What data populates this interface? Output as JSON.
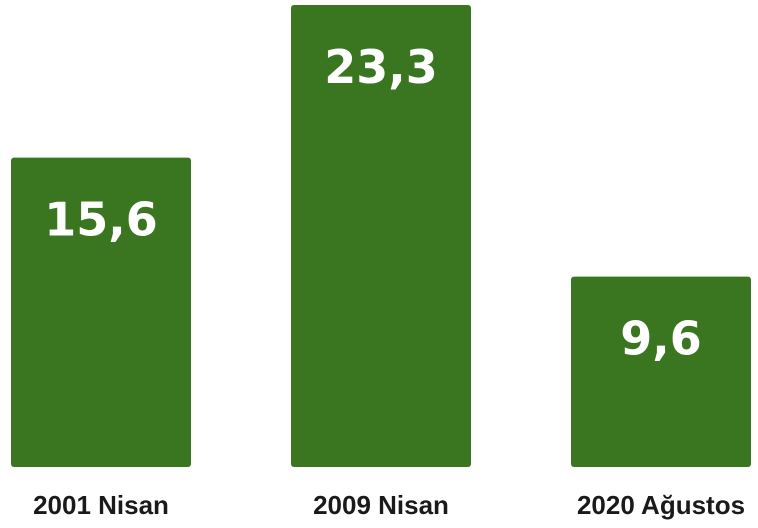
{
  "chart_data": {
    "type": "bar",
    "categories": [
      "2001 Nisan",
      "2009 Nisan",
      "2020 Ağustos"
    ],
    "values": [
      15.6,
      23.3,
      9.6
    ],
    "value_labels": [
      "15,6",
      "23,3",
      "9,6"
    ],
    "title": "",
    "xlabel": "",
    "ylabel": "",
    "ylim": [
      0,
      23.3
    ],
    "grid": false,
    "legend": "none",
    "colors": {
      "bar": "#3a7520",
      "value_text": "#ffffff",
      "category_text": "#1a1a1a"
    }
  }
}
